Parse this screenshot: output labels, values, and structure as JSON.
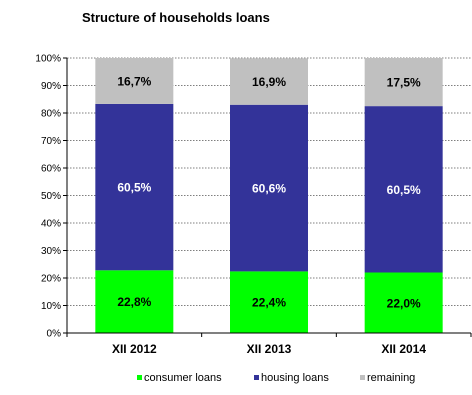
{
  "chart_data": {
    "type": "bar",
    "stacked": true,
    "title": "Structure of households loans",
    "categories": [
      "XII 2012",
      "XII 2013",
      "XII 2014"
    ],
    "y_tick_labels": [
      "0%",
      "10%",
      "20%",
      "30%",
      "40%",
      "50%",
      "60%",
      "70%",
      "80%",
      "90%",
      "100%"
    ],
    "ylim": [
      0,
      100
    ],
    "grid": true,
    "legend_position": "bottom",
    "series": [
      {
        "name": "consumer loans",
        "color": "#00ff00",
        "label_color": "#000000",
        "values": [
          22.8,
          22.4,
          22.0
        ],
        "labels": [
          "22,8%",
          "22,4%",
          "22,0%"
        ]
      },
      {
        "name": "housing loans",
        "color": "#333399",
        "label_color": "#ffffff",
        "values": [
          60.5,
          60.6,
          60.5
        ],
        "labels": [
          "60,5%",
          "60,6%",
          "60,5%"
        ]
      },
      {
        "name": "remaining",
        "color": "#c0c0c0",
        "label_color": "#000000",
        "values": [
          16.7,
          16.9,
          17.5
        ],
        "labels": [
          "16,7%",
          "16,9%",
          "17,5%"
        ]
      }
    ]
  }
}
